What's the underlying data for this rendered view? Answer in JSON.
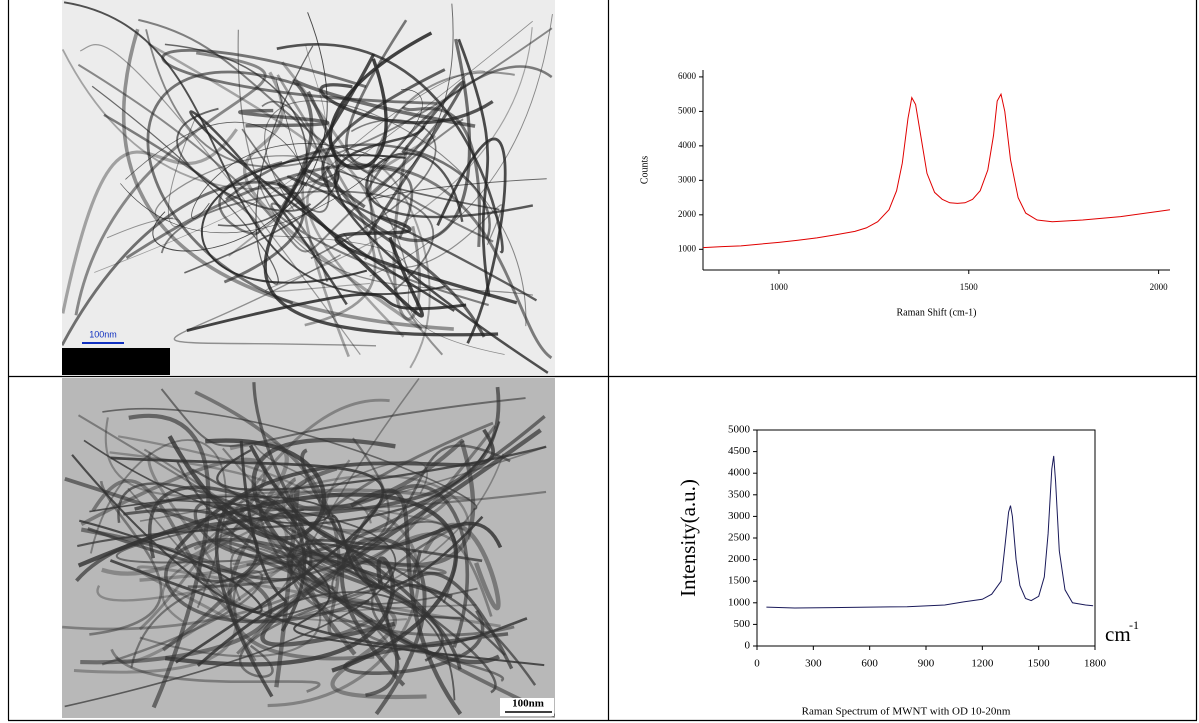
{
  "images": [
    {
      "scale_label": "100nm"
    },
    {
      "scale_label": "100nm"
    }
  ],
  "chart_data": [
    {
      "type": "line",
      "xlabel": "Raman Shift (cm-1)",
      "ylabel": "Counts",
      "x": [
        800,
        850,
        900,
        950,
        1000,
        1050,
        1100,
        1150,
        1200,
        1230,
        1260,
        1290,
        1310,
        1325,
        1340,
        1350,
        1360,
        1375,
        1390,
        1410,
        1430,
        1450,
        1470,
        1490,
        1510,
        1530,
        1550,
        1565,
        1575,
        1585,
        1595,
        1610,
        1630,
        1650,
        1680,
        1720,
        1800,
        1900,
        2000,
        2030
      ],
      "series": [
        {
          "color": "#e00000",
          "values": [
            1050,
            1080,
            1100,
            1150,
            1200,
            1260,
            1330,
            1420,
            1520,
            1620,
            1800,
            2150,
            2700,
            3500,
            4800,
            5400,
            5200,
            4200,
            3200,
            2650,
            2450,
            2350,
            2330,
            2350,
            2450,
            2700,
            3300,
            4300,
            5300,
            5500,
            5000,
            3600,
            2500,
            2050,
            1850,
            1800,
            1850,
            1950,
            2100,
            2150
          ]
        }
      ],
      "xlim": [
        800,
        2030
      ],
      "xticks": [
        1000,
        1500,
        2000
      ],
      "ylim": [
        400,
        6200
      ],
      "yticks": [
        1000,
        2000,
        3000,
        4000,
        5000,
        6000
      ],
      "frame": false
    },
    {
      "type": "line",
      "ylabel": "Intensity(a.u.)",
      "x_unit": "cm",
      "x_unit_sup": "-1",
      "caption": "Raman Spectrum of MWNT with OD 10-20nm",
      "x": [
        50,
        200,
        400,
        600,
        800,
        1000,
        1100,
        1200,
        1250,
        1300,
        1320,
        1340,
        1350,
        1360,
        1380,
        1400,
        1430,
        1460,
        1500,
        1530,
        1550,
        1570,
        1580,
        1590,
        1610,
        1640,
        1680,
        1750,
        1790
      ],
      "series": [
        {
          "color": "#1a1a5a",
          "values": [
            900,
            880,
            890,
            900,
            910,
            950,
            1020,
            1080,
            1200,
            1500,
            2300,
            3100,
            3250,
            3000,
            2000,
            1400,
            1100,
            1050,
            1150,
            1600,
            2600,
            4100,
            4400,
            3800,
            2200,
            1300,
            1000,
            950,
            930
          ]
        }
      ],
      "xlim": [
        0,
        1800
      ],
      "xticks": [
        0,
        300,
        600,
        900,
        1200,
        1500,
        1800
      ],
      "ylim": [
        0,
        5000
      ],
      "yticks": [
        0,
        500,
        1000,
        1500,
        2000,
        2500,
        3000,
        3500,
        4000,
        4500,
        5000
      ],
      "frame": true
    }
  ]
}
